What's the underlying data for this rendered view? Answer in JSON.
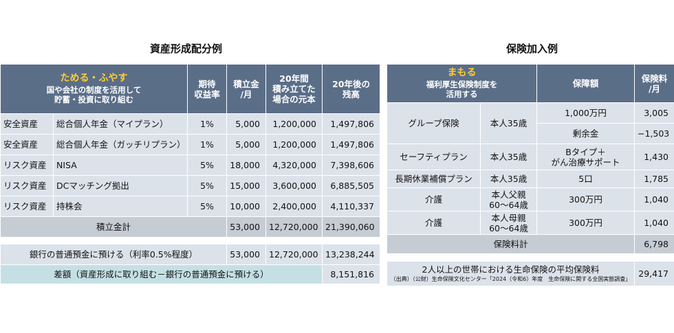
{
  "left": {
    "title": "資産形成配分例",
    "header": {
      "highlight": "ためる・ふやす",
      "sub1": "国や会社の制度を活用して",
      "sub2": "貯蓄・投資に取り組む",
      "col_rate": [
        "期待",
        "収益率"
      ],
      "col_monthly": [
        "積立金",
        "/月"
      ],
      "col_principal": [
        "20年間",
        "積み立てた",
        "場合の元本"
      ],
      "col_balance": [
        "20年後の",
        "残高"
      ]
    },
    "rows": [
      {
        "type": "安全資産",
        "name": "総合個人年金（マイプラン）",
        "rate": "1%",
        "monthly": "5,000",
        "principal": "1,200,000",
        "balance": "1,497,806"
      },
      {
        "type": "安全資産",
        "name": "総合個人年金（ガッチリプラン）",
        "rate": "1%",
        "monthly": "5,000",
        "principal": "1,200,000",
        "balance": "1,497,806"
      },
      {
        "type": "リスク資産",
        "name": "NISA",
        "rate": "5%",
        "monthly": "18,000",
        "principal": "4,320,000",
        "balance": "7,398,606"
      },
      {
        "type": "リスク資産",
        "name": "DCマッチング拠出",
        "rate": "5%",
        "monthly": "15,000",
        "principal": "3,600,000",
        "balance": "6,885,505"
      },
      {
        "type": "リスク資産",
        "name": "持株会",
        "rate": "5%",
        "monthly": "10,000",
        "principal": "2,400,000",
        "balance": "4,110,337"
      }
    ],
    "total": {
      "label": "積立金計",
      "monthly": "53,000",
      "principal": "12,720,000",
      "balance": "21,390,060"
    },
    "bank": {
      "label": "銀行の普通預金に預ける（利率0.5%程度）",
      "monthly": "53,000",
      "principal": "12,720,000",
      "balance": "13,238,244"
    },
    "diff": {
      "label": "差額（資産形成に取り組む－銀行の普通預金に預ける）",
      "value": "8,151,816"
    }
  },
  "right": {
    "title": "保険加入例",
    "header": {
      "highlight": "まもる",
      "sub1": "福利厚生保険制度を",
      "sub2": "活用する",
      "col_coverage": "保障額",
      "col_premium": [
        "保険料",
        "/月"
      ]
    },
    "group": {
      "name": "グループ保険",
      "who": "本人35歳",
      "cov1": "1,000万円",
      "p1": "3,005",
      "cov2": "剰余金",
      "p2": "−1,503"
    },
    "rows": [
      {
        "name": "セーフティプラン",
        "who": [
          "本人35歳"
        ],
        "cov": [
          "Bタイプ＋",
          "がん治療サポート"
        ],
        "premium": "1,430"
      },
      {
        "name": "長期休業補償プラン",
        "who": [
          "本人35歳"
        ],
        "cov": [
          "5口"
        ],
        "premium": "1,785"
      },
      {
        "name": "介護",
        "who": [
          "本人父親",
          "60～64歳"
        ],
        "cov": [
          "300万円"
        ],
        "premium": "1,040"
      },
      {
        "name": "介護",
        "who": [
          "本人母親",
          "60～64歳"
        ],
        "cov": [
          "300万円"
        ],
        "premium": "1,040"
      }
    ],
    "total": {
      "label": "保険料計",
      "value": "6,798"
    },
    "avg": {
      "label": "2人以上の世帯における生命保険の平均保険料",
      "note": "（出典）（公財）生命保険文化センター「2024（令和6）年度　生命保険に関する全国実態調査」",
      "value": "29,417"
    }
  }
}
